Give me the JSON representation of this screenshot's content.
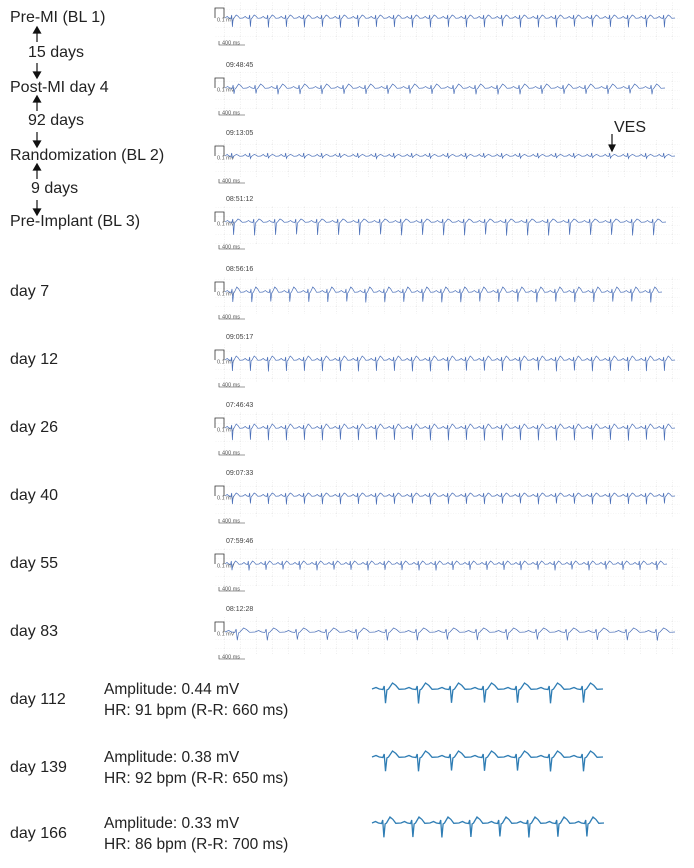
{
  "rows": [
    {
      "label": "Pre-MI (BL 1)"
    },
    {
      "label": "Post-MI day 4",
      "timestamp": "09:48:45"
    },
    {
      "label": "Randomization (BL 2)",
      "timestamp": "09:13:05"
    },
    {
      "label": "Pre-Implant (BL 3)",
      "timestamp": "08:51:12"
    },
    {
      "label": "day 7",
      "timestamp": "08:56:16"
    },
    {
      "label": "day 12",
      "timestamp": "09:05:17"
    },
    {
      "label": "day 26",
      "timestamp": "07:46:43"
    },
    {
      "label": "day 40",
      "timestamp": "09:07:33"
    },
    {
      "label": "day 55",
      "timestamp": "07:59:46"
    },
    {
      "label": "day 83",
      "timestamp": "08:12:28"
    }
  ],
  "intervals": [
    "15 days",
    "92 days",
    "9 days"
  ],
  "annotation": "VES",
  "scale": {
    "amplitude": "0.1 mV",
    "time": "400 ms"
  },
  "summaries": [
    {
      "label": "day 112",
      "amplitude": "Amplitude: 0.44 mV",
      "hr": "HR: 91 bpm (R-R: 660 ms)"
    },
    {
      "label": "day 139",
      "amplitude": "Amplitude: 0.38 mV",
      "hr": "HR: 92 bpm (R-R: 650 ms)"
    },
    {
      "label": "day 166",
      "amplitude": "Amplitude: 0.33 mV",
      "hr": "HR: 86 bpm (R-R: 700 ms)"
    }
  ]
}
